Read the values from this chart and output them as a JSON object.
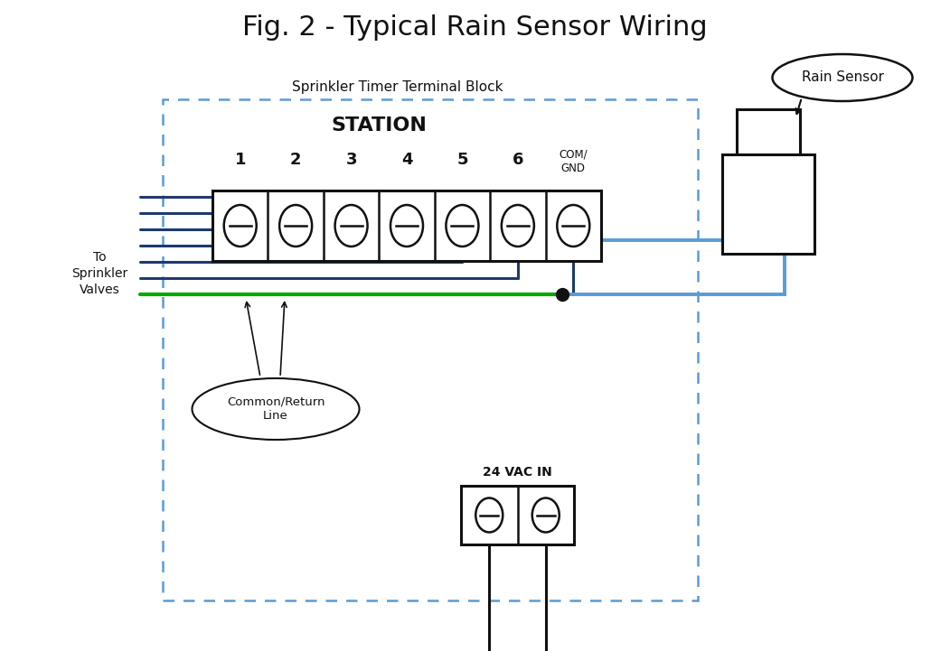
{
  "title": "Fig. 2 - Typical Rain Sensor Wiring",
  "title_fontsize": 22,
  "bg_color": "#ffffff",
  "dark_blue": "#1e3a6e",
  "light_blue": "#5b9bd5",
  "green": "#00aa00",
  "black": "#111111",
  "terminal_block_label": "Sprinkler Timer Terminal Block",
  "station_label": "STATION",
  "station_numbers": [
    "1",
    "2",
    "3",
    "4",
    "5",
    "6"
  ],
  "com_gnd_label": "COM/\nGND",
  "to_valves_label": "To\nSprinkler\nValves",
  "common_return_label": "Common/Return\nLine",
  "vac_label": "24 VAC IN",
  "rain_sensor_label": "Rain Sensor",
  "fig_width": 10.51,
  "fig_height": 7.21,
  "dpi": 100
}
